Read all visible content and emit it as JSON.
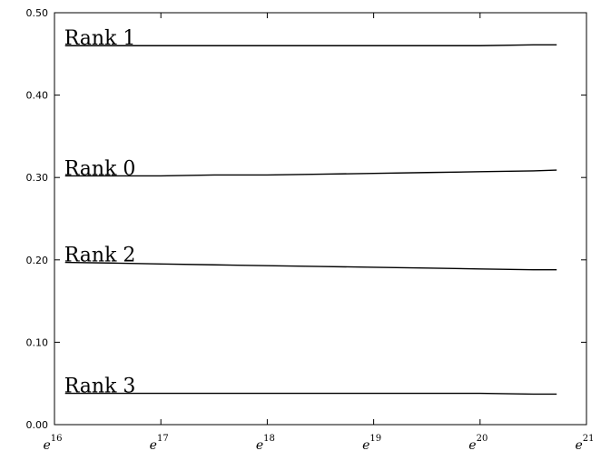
{
  "chart_data": {
    "type": "line",
    "title": "",
    "xlabel": "",
    "ylabel": "",
    "x_scale": "log-e",
    "x_tick_base": "e",
    "x_tick_exponents": [
      "16",
      "17",
      "18",
      "19",
      "20",
      "21"
    ],
    "xlim_exponent": [
      16,
      21
    ],
    "ylim": [
      0.0,
      0.5
    ],
    "y_ticks": [
      0.0,
      0.1,
      0.2,
      0.3,
      0.4,
      0.5
    ],
    "y_tick_labels": [
      "0.00",
      "0.10",
      "0.20",
      "0.30",
      "0.40",
      "0.50"
    ],
    "grid": false,
    "legend": "inline labels",
    "x_exponent": [
      16.1,
      16.6,
      17.0,
      17.5,
      18.0,
      18.5,
      19.0,
      19.5,
      20.0,
      20.5,
      20.72
    ],
    "series": [
      {
        "name": "Rank 1",
        "values": [
          0.46,
          0.46,
          0.46,
          0.46,
          0.46,
          0.46,
          0.46,
          0.46,
          0.46,
          0.461,
          0.461
        ]
      },
      {
        "name": "Rank 0",
        "values": [
          0.302,
          0.302,
          0.302,
          0.303,
          0.303,
          0.304,
          0.305,
          0.306,
          0.307,
          0.308,
          0.309
        ]
      },
      {
        "name": "Rank 2",
        "values": [
          0.197,
          0.196,
          0.195,
          0.194,
          0.193,
          0.192,
          0.191,
          0.19,
          0.189,
          0.188,
          0.188
        ]
      },
      {
        "name": "Rank 3",
        "values": [
          0.038,
          0.038,
          0.038,
          0.038,
          0.038,
          0.038,
          0.038,
          0.038,
          0.038,
          0.037,
          0.037
        ]
      }
    ],
    "color": "#000000"
  }
}
